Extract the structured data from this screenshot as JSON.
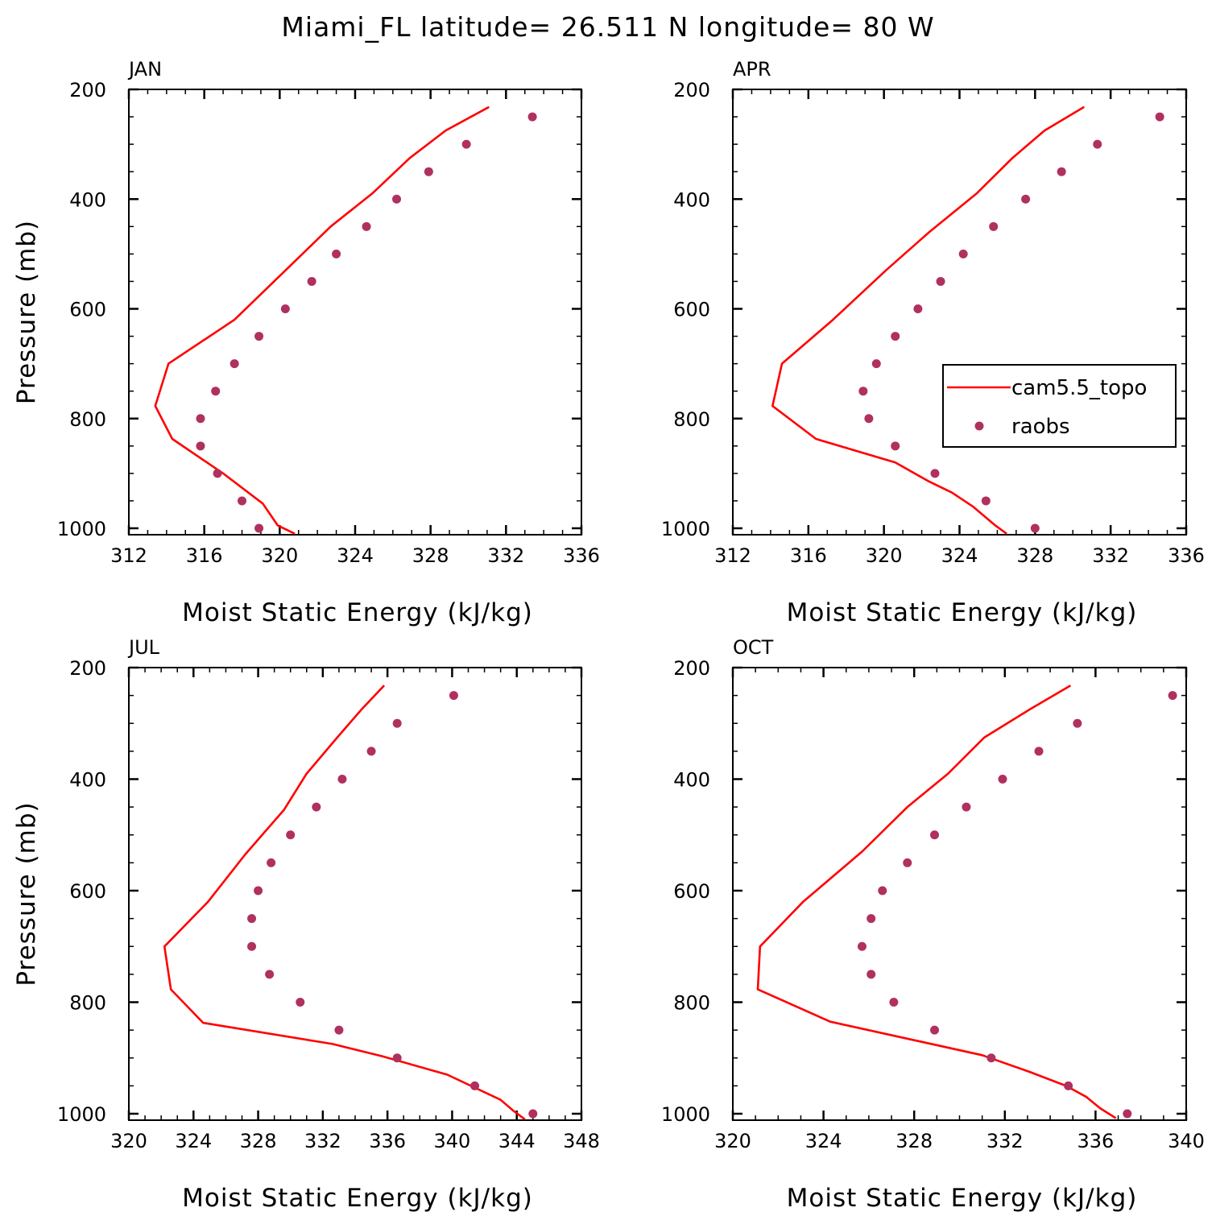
{
  "title": "Miami_FL  latitude= 26.511 N longitude= 80 W",
  "colors": {
    "model": "#ff0000",
    "obs": "#b03060",
    "axis": "#000000"
  },
  "legend": {
    "placement": "right-center of APR panel",
    "model_label": "cam5.5_topo",
    "obs_label": "raobs"
  },
  "chart_data": [
    {
      "type": "line",
      "label": "JAN",
      "xlabel": "Moist Static Energy (kJ/kg)",
      "ylabel": "Pressure (mb)",
      "xlim": [
        312,
        336
      ],
      "ylim": [
        1000,
        200
      ],
      "xticks": [
        "312",
        "316",
        "320",
        "324",
        "328",
        "332",
        "336"
      ],
      "yticks": [
        "200",
        "400",
        "600",
        "800",
        "1000"
      ],
      "series": [
        {
          "name": "cam5.5_topo",
          "kind": "line",
          "x": [
            331.1,
            328.8,
            326.9,
            324.9,
            322.7,
            320.3,
            317.6,
            314.1,
            313.4,
            314.3,
            317.0,
            319.1,
            319.9,
            320.8
          ],
          "y": [
            232,
            275,
            325,
            390,
            450,
            530,
            620,
            700,
            777,
            837,
            900,
            955,
            995,
            1010
          ]
        },
        {
          "name": "raobs",
          "kind": "scatter",
          "x": [
            333.4,
            329.9,
            327.9,
            326.2,
            324.6,
            323.0,
            321.7,
            320.3,
            318.9,
            317.6,
            316.6,
            315.8,
            315.8,
            316.7,
            318.0,
            318.9
          ],
          "y": [
            250,
            300,
            350,
            400,
            450,
            500,
            550,
            600,
            650,
            700,
            750,
            800,
            850,
            900,
            950,
            1000
          ]
        }
      ]
    },
    {
      "type": "line",
      "label": "APR",
      "xlabel": "Moist Static Energy (kJ/kg)",
      "ylabel": "",
      "xlim": [
        312,
        336
      ],
      "ylim": [
        1000,
        200
      ],
      "xticks": [
        "312",
        "316",
        "320",
        "324",
        "328",
        "332",
        "336"
      ],
      "yticks": [
        "200",
        "400",
        "600",
        "800",
        "1000"
      ],
      "series": [
        {
          "name": "cam5.5_topo",
          "kind": "line",
          "x": [
            330.6,
            328.5,
            326.8,
            324.9,
            322.4,
            320.1,
            317.3,
            314.6,
            314.1,
            316.4,
            320.6,
            322.4,
            323.6,
            324.7,
            325.9,
            326.5
          ],
          "y": [
            232,
            275,
            325,
            390,
            460,
            530,
            620,
            700,
            777,
            837,
            880,
            915,
            935,
            960,
            995,
            1010
          ]
        },
        {
          "name": "raobs",
          "kind": "scatter",
          "x": [
            334.6,
            331.3,
            329.4,
            327.5,
            325.8,
            324.2,
            323.0,
            321.8,
            320.6,
            319.6,
            318.9,
            319.2,
            320.6,
            322.7,
            325.4,
            328.0
          ],
          "y": [
            250,
            300,
            350,
            400,
            450,
            500,
            550,
            600,
            650,
            700,
            750,
            800,
            850,
            900,
            950,
            1000
          ]
        }
      ]
    },
    {
      "type": "line",
      "label": "JUL",
      "xlabel": "Moist Static Energy (kJ/kg)",
      "ylabel": "Pressure (mb)",
      "xlim": [
        320,
        348
      ],
      "ylim": [
        1000,
        200
      ],
      "xticks": [
        "320",
        "324",
        "328",
        "332",
        "336",
        "340",
        "344",
        "348"
      ],
      "yticks": [
        "200",
        "400",
        "600",
        "800",
        "1000"
      ],
      "series": [
        {
          "name": "cam5.5_topo",
          "kind": "line",
          "x": [
            335.8,
            334.4,
            332.9,
            331.0,
            329.6,
            327.2,
            324.9,
            322.2,
            322.6,
            324.6,
            332.6,
            335.7,
            339.7,
            343.0,
            343.8,
            344.5
          ],
          "y": [
            232,
            275,
            325,
            390,
            455,
            535,
            620,
            700,
            777,
            837,
            875,
            897,
            930,
            975,
            995,
            1010
          ]
        },
        {
          "name": "raobs",
          "kind": "scatter",
          "x": [
            340.1,
            336.6,
            335.0,
            333.2,
            331.6,
            330.0,
            328.8,
            328.0,
            327.6,
            327.6,
            328.7,
            330.6,
            333.0,
            336.6,
            341.4,
            345.0
          ],
          "y": [
            250,
            300,
            350,
            400,
            450,
            500,
            550,
            600,
            650,
            700,
            750,
            800,
            850,
            900,
            950,
            1000
          ]
        }
      ]
    },
    {
      "type": "line",
      "label": "OCT",
      "xlabel": "Moist Static Energy (kJ/kg)",
      "ylabel": "",
      "xlim": [
        320,
        340
      ],
      "ylim": [
        1000,
        200
      ],
      "xticks": [
        "320",
        "324",
        "328",
        "332",
        "336",
        "340"
      ],
      "yticks": [
        "200",
        "400",
        "600",
        "800",
        "1000"
      ],
      "series": [
        {
          "name": "cam5.5_topo",
          "kind": "line",
          "x": [
            334.9,
            333.1,
            331.1,
            329.5,
            327.7,
            325.7,
            323.1,
            321.2,
            321.1,
            324.3,
            331.0,
            333.1,
            334.7,
            335.6,
            336.2,
            336.9
          ],
          "y": [
            232,
            275,
            325,
            390,
            450,
            530,
            620,
            700,
            777,
            835,
            895,
            925,
            950,
            970,
            990,
            1008
          ]
        },
        {
          "name": "raobs",
          "kind": "scatter",
          "x": [
            339.4,
            335.2,
            333.5,
            331.9,
            330.3,
            328.9,
            327.7,
            326.6,
            326.1,
            325.7,
            326.1,
            327.1,
            328.9,
            331.4,
            334.8,
            337.4
          ],
          "y": [
            250,
            300,
            350,
            400,
            450,
            500,
            550,
            600,
            650,
            700,
            750,
            800,
            850,
            900,
            950,
            1000
          ]
        }
      ]
    }
  ]
}
